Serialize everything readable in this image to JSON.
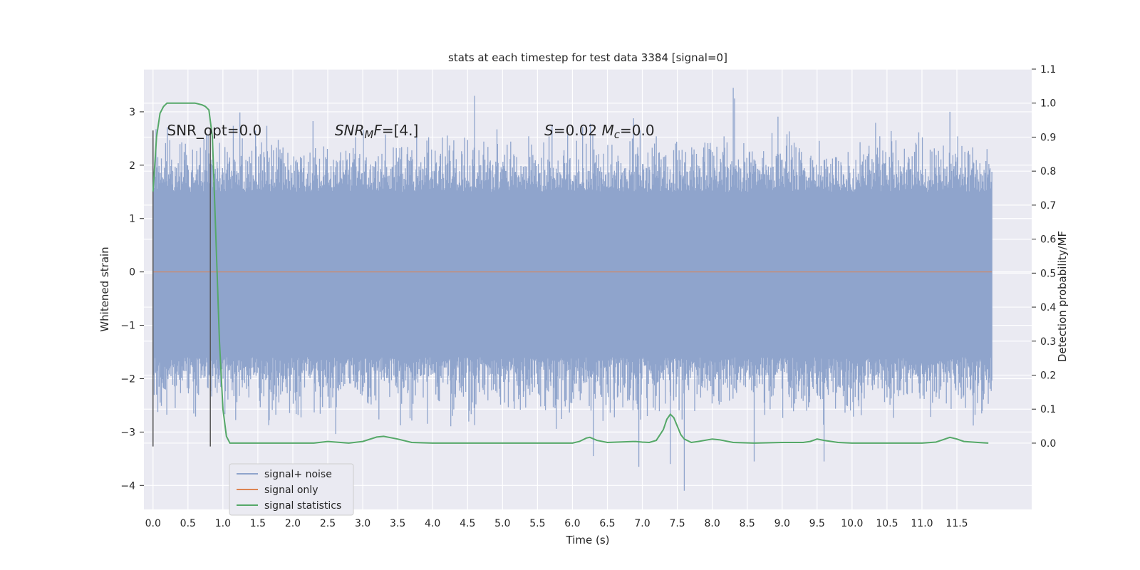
{
  "chart_data": {
    "type": "line",
    "title": "stats at each timestep for test data 3384 [signal=0]",
    "xlabel": "Time (s)",
    "ylabel_left": "Whitened strain",
    "ylabel_right": "Detection probability/MF",
    "xlim": [
      -0.13,
      12.57
    ],
    "ylim_left": [
      -4.45,
      3.8
    ],
    "ylim_right": [
      -0.195,
      1.1
    ],
    "x_ticks": [
      0.0,
      0.5,
      1.0,
      1.5,
      2.0,
      2.5,
      3.0,
      3.5,
      4.0,
      4.5,
      5.0,
      5.5,
      6.0,
      6.5,
      7.0,
      7.5,
      8.0,
      8.5,
      9.0,
      9.5,
      10.0,
      10.5,
      11.0,
      11.5
    ],
    "x_tick_labels": [
      "0.0",
      "0.5",
      "1.0",
      "1.5",
      "2.0",
      "2.5",
      "3.0",
      "3.5",
      "4.0",
      "4.5",
      "5.0",
      "5.5",
      "6.0",
      "6.5",
      "7.0",
      "7.5",
      "8.0",
      "8.5",
      "9.0",
      "9.5",
      "10.0",
      "10.5",
      "11.0",
      "11.5"
    ],
    "y_ticks_left": [
      -4,
      -3,
      -2,
      -1,
      0,
      1,
      2,
      3
    ],
    "y_tick_labels_left": [
      "−4",
      "−3",
      "−2",
      "−1",
      "0",
      "1",
      "2",
      "3"
    ],
    "y_ticks_right": [
      0.0,
      0.1,
      0.2,
      0.3,
      0.4,
      0.5,
      0.6,
      0.7,
      0.8,
      0.9,
      1.0,
      1.1
    ],
    "y_tick_labels_right": [
      "0.0",
      "0.1",
      "0.2",
      "0.3",
      "0.4",
      "0.5",
      "0.6",
      "0.7",
      "0.8",
      "0.9",
      "1.0",
      "1.1"
    ],
    "grid": true,
    "legend_position": "lower-left",
    "series": [
      {
        "name": "signal+ noise",
        "axis": "left",
        "color": "#8fa4cc",
        "description_range": [
          0.0,
          12.0
        ],
        "amplitude_envelope": {
          "core_min": -1.6,
          "core_max": 1.5,
          "peak_max": 3.45,
          "peak_min": -4.1,
          "notable_peaks": [
            [
              0.0,
              2.65
            ],
            [
              0.05,
              -2.3
            ],
            [
              4.6,
              3.3
            ],
            [
              7.4,
              -3.6
            ],
            [
              7.6,
              -4.1
            ],
            [
              8.3,
              3.45
            ],
            [
              8.32,
              3.25
            ],
            [
              9.6,
              -3.55
            ],
            [
              11.4,
              3.0
            ],
            [
              6.3,
              -3.45
            ],
            [
              6.95,
              -3.65
            ],
            [
              8.6,
              -3.55
            ]
          ]
        }
      },
      {
        "name": "signal only",
        "axis": "left",
        "color": "#dd8452",
        "x": [
          0.0,
          12.0
        ],
        "y": [
          0.0,
          0.0
        ]
      },
      {
        "name": "signal statistics",
        "axis": "right",
        "color": "#55a868",
        "x": [
          0.0,
          0.05,
          0.1,
          0.15,
          0.2,
          0.3,
          0.4,
          0.5,
          0.6,
          0.7,
          0.75,
          0.8,
          0.85,
          0.9,
          0.95,
          1.0,
          1.05,
          1.1,
          1.2,
          1.5,
          2.0,
          2.3,
          2.5,
          2.8,
          3.0,
          3.2,
          3.3,
          3.5,
          3.7,
          4.0,
          5.0,
          6.0,
          6.1,
          6.2,
          6.25,
          6.35,
          6.5,
          6.9,
          7.0,
          7.1,
          7.2,
          7.3,
          7.35,
          7.4,
          7.45,
          7.5,
          7.55,
          7.6,
          7.7,
          7.8,
          8.0,
          8.1,
          8.3,
          8.6,
          9.0,
          9.3,
          9.4,
          9.5,
          9.6,
          9.8,
          10.0,
          11.0,
          11.2,
          11.3,
          11.4,
          11.5,
          11.6,
          11.8,
          11.95
        ],
        "y": [
          0.74,
          0.9,
          0.97,
          0.99,
          1.0,
          1.0,
          1.0,
          1.0,
          1.0,
          0.995,
          0.99,
          0.98,
          0.9,
          0.6,
          0.3,
          0.1,
          0.02,
          0.0,
          0.0,
          0.0,
          0.0,
          0.0,
          0.005,
          0.0,
          0.005,
          0.018,
          0.02,
          0.012,
          0.002,
          0.0,
          0.0,
          0.0,
          0.005,
          0.015,
          0.017,
          0.008,
          0.002,
          0.005,
          0.003,
          0.002,
          0.008,
          0.04,
          0.07,
          0.085,
          0.075,
          0.05,
          0.025,
          0.012,
          0.002,
          0.005,
          0.012,
          0.01,
          0.002,
          0.0,
          0.002,
          0.002,
          0.005,
          0.012,
          0.008,
          0.002,
          0.0,
          0.0,
          0.003,
          0.01,
          0.017,
          0.012,
          0.005,
          0.002,
          0.0
        ]
      }
    ],
    "vlines": [
      {
        "x": 0.0,
        "y_range": [
          -3.27,
          2.65
        ],
        "color": "#555555"
      },
      {
        "x": 0.82,
        "y_range": [
          -3.27,
          2.65
        ],
        "color": "#555555"
      }
    ],
    "annotations": [
      {
        "text": "SNR_opt=0.0",
        "x": 0.2,
        "y": 2.65
      },
      {
        "text_parts": [
          {
            "t": "SNR",
            "italic": true
          },
          {
            "t": "M",
            "italic": true,
            "sub": true
          },
          {
            "t": "F",
            "italic": true
          },
          {
            "t": "=[4.]",
            "italic": false
          }
        ],
        "x": 2.6,
        "y": 2.65
      },
      {
        "text_parts": [
          {
            "t": "S",
            "italic": true
          },
          {
            "t": "=0.02   ",
            "italic": false
          },
          {
            "t": "M",
            "italic": true
          },
          {
            "t": "c",
            "italic": true,
            "sub": true
          },
          {
            "t": "=0.0",
            "italic": false
          }
        ],
        "x": 5.6,
        "y": 2.65
      }
    ]
  }
}
